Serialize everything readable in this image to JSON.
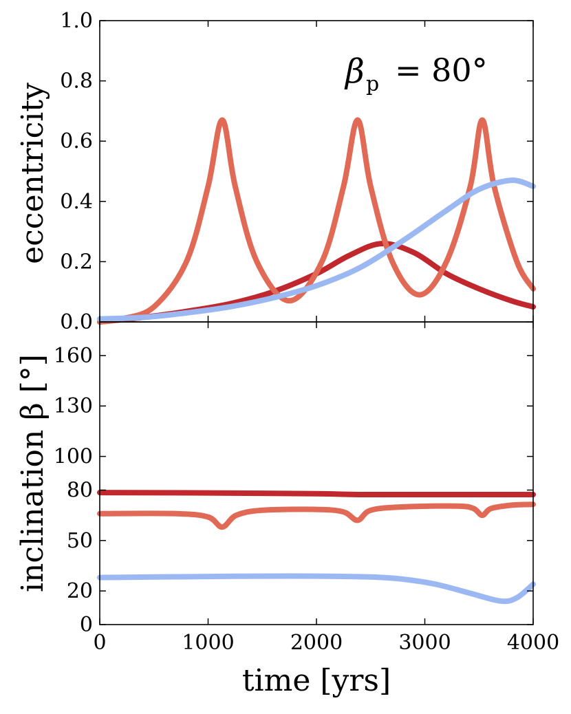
{
  "chart_data": [
    {
      "type": "line",
      "panel": "top",
      "ylabel": "eccentricity",
      "ylim": [
        0,
        1.0
      ],
      "yticks": [
        "0.0",
        "0.2",
        "0.4",
        "0.6",
        "0.8",
        "1.0"
      ],
      "yticks_values": [
        0,
        0.2,
        0.4,
        0.6,
        0.8,
        1.0
      ],
      "xlim": [
        0,
        4000
      ],
      "annotation": {
        "symbol": "β",
        "subscript": "p",
        "rest": "= 80°"
      },
      "series": [
        {
          "name": "dark-red",
          "color": "#c0282d",
          "x": [
            0,
            400,
            800,
            1200,
            1600,
            2000,
            2300,
            2600,
            2900,
            3200,
            3500,
            3800,
            4000
          ],
          "y": [
            0.0,
            0.015,
            0.035,
            0.06,
            0.1,
            0.16,
            0.22,
            0.26,
            0.23,
            0.16,
            0.11,
            0.07,
            0.05
          ]
        },
        {
          "name": "mid-red",
          "color": "#e06a55",
          "x": [
            0,
            200,
            500,
            800,
            1000,
            1130,
            1250,
            1450,
            1750,
            2050,
            2250,
            2380,
            2500,
            2700,
            2950,
            3200,
            3420,
            3530,
            3640,
            3850,
            4000
          ],
          "y": [
            0.0,
            0.01,
            0.05,
            0.2,
            0.45,
            0.67,
            0.45,
            0.2,
            0.07,
            0.2,
            0.45,
            0.67,
            0.45,
            0.2,
            0.09,
            0.2,
            0.45,
            0.67,
            0.45,
            0.2,
            0.11
          ]
        },
        {
          "name": "light-blue",
          "color": "#9bb8f2",
          "x": [
            0,
            400,
            800,
            1200,
            1600,
            2000,
            2400,
            2800,
            3200,
            3500,
            3800,
            4000
          ],
          "y": [
            0.01,
            0.015,
            0.03,
            0.05,
            0.08,
            0.12,
            0.18,
            0.27,
            0.37,
            0.44,
            0.47,
            0.45
          ]
        }
      ]
    },
    {
      "type": "line",
      "panel": "bottom",
      "ylabel": "inclination β [°]",
      "ylim": [
        0,
        180
      ],
      "yticks": [
        "0",
        "20",
        "50",
        "80",
        "100",
        "130",
        "160"
      ],
      "yticks_values": [
        0,
        20,
        50,
        80,
        100,
        130,
        160
      ],
      "xlabel": "time [yrs]",
      "xlim": [
        0,
        4000
      ],
      "xticks": [
        "0",
        "1000",
        "2000",
        "3000",
        "4000"
      ],
      "xticks_values": [
        0,
        1000,
        2000,
        3000,
        4000
      ],
      "series": [
        {
          "name": "dark-red",
          "color": "#c0282d",
          "x": [
            0,
            1000,
            2000,
            2400,
            3000,
            4000
          ],
          "y": [
            78.5,
            78.3,
            77.8,
            77.3,
            77.3,
            77.3
          ]
        },
        {
          "name": "mid-red",
          "color": "#e06a55",
          "x": [
            0,
            700,
            1000,
            1130,
            1260,
            1500,
            2000,
            2250,
            2380,
            2500,
            2800,
            3300,
            3450,
            3530,
            3610,
            3800,
            4000
          ],
          "y": [
            66,
            66,
            64,
            58,
            65,
            68,
            68.5,
            67,
            62,
            68,
            70,
            70.5,
            69,
            65,
            69,
            71,
            71.5
          ]
        },
        {
          "name": "light-blue",
          "color": "#9bb8f2",
          "x": [
            0,
            500,
            1000,
            1500,
            2000,
            2500,
            2800,
            3100,
            3400,
            3700,
            3850,
            4000
          ],
          "y": [
            28,
            28.3,
            28.6,
            28.8,
            28.8,
            28.3,
            27,
            24,
            19,
            14,
            16,
            24
          ]
        }
      ]
    }
  ]
}
